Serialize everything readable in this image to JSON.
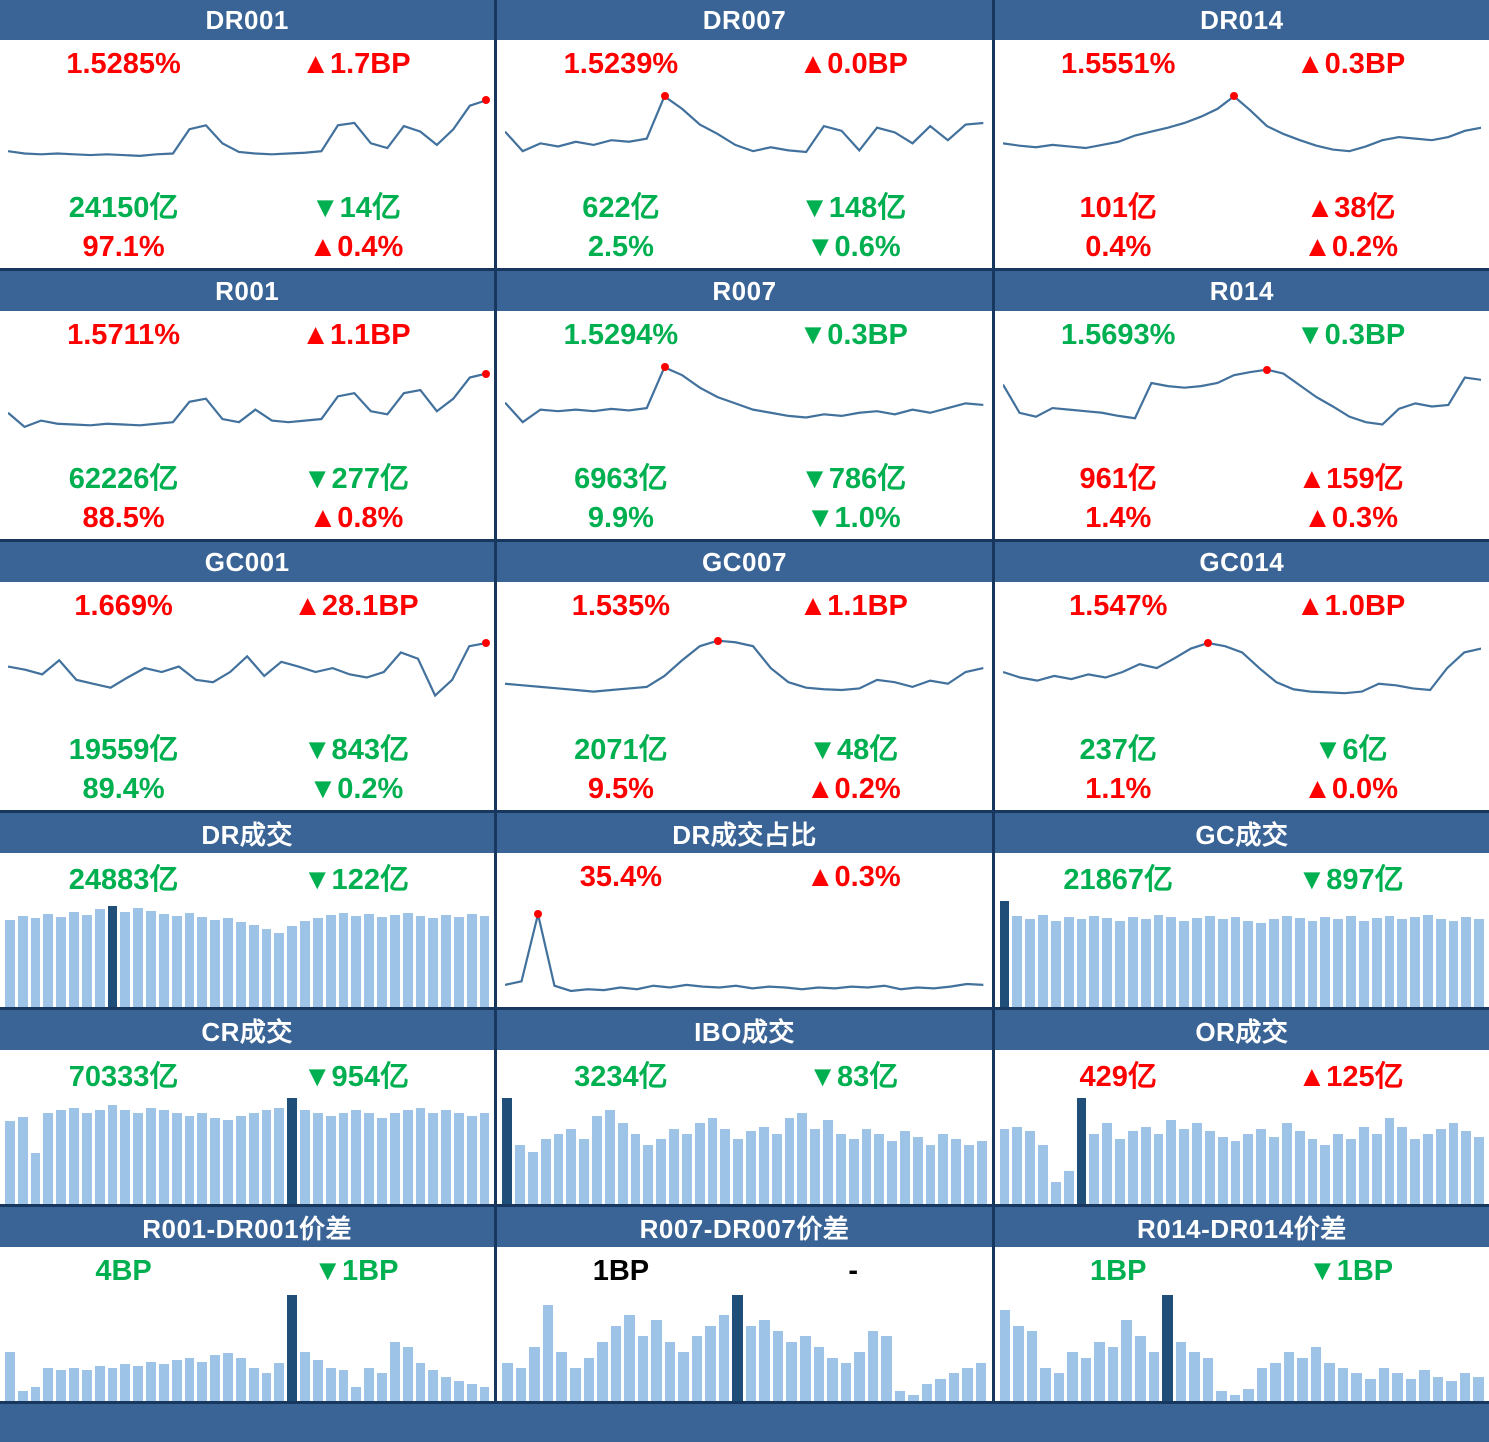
{
  "colors": {
    "up": "#FF0000",
    "down": "#00B050",
    "flat": "#000000",
    "header_bg": "#3A6496",
    "header_text": "#FFFFFF",
    "line": "#41719C",
    "bar_light": "#9DC3E6",
    "bar_dark": "#1F4E79",
    "dot": "#FF0000",
    "border": "#17375E"
  },
  "panels": [
    {
      "id": "dr001",
      "kind": "rate",
      "title": "DR001",
      "rate": {
        "value": "1.5285%",
        "change": "▲1.7BP",
        "dir": "up"
      },
      "volume": {
        "value": "24150亿",
        "change": "▼14亿",
        "dir": "down"
      },
      "share": {
        "value": "97.1%",
        "change": "▲0.4%",
        "dir": "up"
      }
    },
    {
      "id": "dr007",
      "kind": "rate",
      "title": "DR007",
      "rate": {
        "value": "1.5239%",
        "change": "▲0.0BP",
        "dir": "up"
      },
      "volume": {
        "value": "622亿",
        "change": "▼148亿",
        "dir": "down"
      },
      "share": {
        "value": "2.5%",
        "change": "▼0.6%",
        "dir": "down"
      }
    },
    {
      "id": "dr014",
      "kind": "rate",
      "title": "DR014",
      "rate": {
        "value": "1.5551%",
        "change": "▲0.3BP",
        "dir": "up"
      },
      "volume": {
        "value": "101亿",
        "change": "▲38亿",
        "dir": "up"
      },
      "share": {
        "value": "0.4%",
        "change": "▲0.2%",
        "dir": "up"
      }
    },
    {
      "id": "r001",
      "kind": "rate",
      "title": "R001",
      "rate": {
        "value": "1.5711%",
        "change": "▲1.1BP",
        "dir": "up"
      },
      "volume": {
        "value": "62226亿",
        "change": "▼277亿",
        "dir": "down"
      },
      "share": {
        "value": "88.5%",
        "change": "▲0.8%",
        "dir": "up"
      }
    },
    {
      "id": "r007",
      "kind": "rate",
      "title": "R007",
      "rate": {
        "value": "1.5294%",
        "change": "▼0.3BP",
        "dir": "down"
      },
      "volume": {
        "value": "6963亿",
        "change": "▼786亿",
        "dir": "down"
      },
      "share": {
        "value": "9.9%",
        "change": "▼1.0%",
        "dir": "down"
      }
    },
    {
      "id": "r014",
      "kind": "rate",
      "title": "R014",
      "rate": {
        "value": "1.5693%",
        "change": "▼0.3BP",
        "dir": "down"
      },
      "volume": {
        "value": "961亿",
        "change": "▲159亿",
        "dir": "up"
      },
      "share": {
        "value": "1.4%",
        "change": "▲0.3%",
        "dir": "up"
      }
    },
    {
      "id": "gc001",
      "kind": "rate",
      "title": "GC001",
      "rate": {
        "value": "1.669%",
        "change": "▲28.1BP",
        "dir": "up"
      },
      "volume": {
        "value": "19559亿",
        "change": "▼843亿",
        "dir": "down"
      },
      "share": {
        "value": "89.4%",
        "change": "▼0.2%",
        "dir": "down"
      }
    },
    {
      "id": "gc007",
      "kind": "rate",
      "title": "GC007",
      "rate": {
        "value": "1.535%",
        "change": "▲1.1BP",
        "dir": "up"
      },
      "volume": {
        "value": "2071亿",
        "change": "▼48亿",
        "dir": "down"
      },
      "share": {
        "value": "9.5%",
        "change": "▲0.2%",
        "dir": "up"
      }
    },
    {
      "id": "gc014",
      "kind": "rate",
      "title": "GC014",
      "rate": {
        "value": "1.547%",
        "change": "▲1.0BP",
        "dir": "up"
      },
      "volume": {
        "value": "237亿",
        "change": "▼6亿",
        "dir": "down"
      },
      "share": {
        "value": "1.1%",
        "change": "▲0.0%",
        "dir": "up"
      }
    },
    {
      "id": "dr-turnover",
      "kind": "summary",
      "title": "DR成交",
      "stat": {
        "value": "24883亿",
        "change": "▼122亿",
        "dir": "down"
      }
    },
    {
      "id": "dr-share",
      "kind": "summary",
      "title": "DR成交占比",
      "stat": {
        "value": "35.4%",
        "change": "▲0.3%",
        "dir": "up"
      }
    },
    {
      "id": "gc-turnover",
      "kind": "summary",
      "title": "GC成交",
      "stat": {
        "value": "21867亿",
        "change": "▼897亿",
        "dir": "down"
      }
    },
    {
      "id": "cr-turnover",
      "kind": "summary",
      "title": "CR成交",
      "stat": {
        "value": "70333亿",
        "change": "▼954亿",
        "dir": "down"
      }
    },
    {
      "id": "ibo-turnover",
      "kind": "summary",
      "title": "IBO成交",
      "stat": {
        "value": "3234亿",
        "change": "▼83亿",
        "dir": "down"
      }
    },
    {
      "id": "or-turnover",
      "kind": "summary",
      "title": "OR成交",
      "stat": {
        "value": "429亿",
        "change": "▲125亿",
        "dir": "up"
      }
    },
    {
      "id": "spread-r001",
      "kind": "summary",
      "title": "R001-DR001价差",
      "stat": {
        "value": "4BP",
        "change": "▼1BP",
        "dir": "down"
      }
    },
    {
      "id": "spread-r007",
      "kind": "summary",
      "title": "R007-DR007价差",
      "stat": {
        "value": "1BP",
        "change": "-",
        "dir": "flat"
      }
    },
    {
      "id": "spread-r014",
      "kind": "summary",
      "title": "R014-DR014价差",
      "stat": {
        "value": "1BP",
        "change": "▼1BP",
        "dir": "down"
      }
    }
  ],
  "chart_data": [
    {
      "panel": "DR001",
      "type": "line",
      "ylim": [
        0,
        1
      ],
      "note": "normalized sparkline, no axis labels shown",
      "values": [
        0.3,
        0.27,
        0.26,
        0.27,
        0.26,
        0.25,
        0.26,
        0.25,
        0.24,
        0.26,
        0.27,
        0.58,
        0.63,
        0.4,
        0.29,
        0.27,
        0.26,
        0.27,
        0.28,
        0.3,
        0.63,
        0.66,
        0.4,
        0.34,
        0.62,
        0.55,
        0.38,
        0.58,
        0.88,
        0.95
      ],
      "dot_index": 29
    },
    {
      "panel": "DR007",
      "type": "line",
      "ylim": [
        0,
        1
      ],
      "note": "normalized",
      "values": [
        0.55,
        0.3,
        0.4,
        0.36,
        0.42,
        0.38,
        0.44,
        0.42,
        0.46,
        1.0,
        0.84,
        0.64,
        0.52,
        0.38,
        0.3,
        0.35,
        0.31,
        0.29,
        0.62,
        0.56,
        0.31,
        0.6,
        0.54,
        0.4,
        0.62,
        0.44,
        0.64,
        0.66
      ],
      "dot_index": 9
    },
    {
      "panel": "DR014",
      "type": "line",
      "ylim": [
        0,
        1
      ],
      "note": "normalized",
      "values": [
        0.4,
        0.37,
        0.35,
        0.38,
        0.36,
        0.34,
        0.38,
        0.42,
        0.5,
        0.55,
        0.6,
        0.66,
        0.74,
        0.84,
        1.0,
        0.82,
        0.62,
        0.52,
        0.44,
        0.37,
        0.32,
        0.3,
        0.36,
        0.44,
        0.48,
        0.46,
        0.44,
        0.48,
        0.56,
        0.6
      ],
      "dot_index": 14
    },
    {
      "panel": "R001",
      "type": "line",
      "ylim": [
        0,
        1
      ],
      "note": "normalized",
      "values": [
        0.42,
        0.24,
        0.32,
        0.28,
        0.27,
        0.26,
        0.28,
        0.27,
        0.26,
        0.28,
        0.3,
        0.56,
        0.6,
        0.34,
        0.3,
        0.46,
        0.32,
        0.3,
        0.32,
        0.34,
        0.63,
        0.67,
        0.44,
        0.4,
        0.67,
        0.71,
        0.44,
        0.6,
        0.87,
        0.92
      ],
      "dot_index": 29
    },
    {
      "panel": "R007",
      "type": "line",
      "ylim": [
        0,
        1
      ],
      "note": "normalized",
      "values": [
        0.55,
        0.3,
        0.46,
        0.44,
        0.46,
        0.44,
        0.47,
        0.45,
        0.48,
        1.0,
        0.9,
        0.74,
        0.62,
        0.54,
        0.46,
        0.42,
        0.38,
        0.36,
        0.4,
        0.38,
        0.42,
        0.44,
        0.4,
        0.46,
        0.42,
        0.48,
        0.54,
        0.52
      ],
      "dot_index": 9
    },
    {
      "panel": "R014",
      "type": "line",
      "ylim": [
        0,
        1
      ],
      "note": "normalized",
      "values": [
        0.78,
        0.42,
        0.37,
        0.48,
        0.46,
        0.44,
        0.42,
        0.38,
        0.35,
        0.8,
        0.76,
        0.74,
        0.76,
        0.8,
        0.9,
        0.94,
        0.97,
        0.92,
        0.77,
        0.62,
        0.5,
        0.37,
        0.3,
        0.27,
        0.47,
        0.54,
        0.5,
        0.52,
        0.87,
        0.84
      ],
      "dot_index": 16
    },
    {
      "panel": "GC001",
      "type": "line",
      "ylim": [
        0,
        1
      ],
      "note": "normalized",
      "values": [
        0.64,
        0.6,
        0.54,
        0.72,
        0.47,
        0.42,
        0.37,
        0.5,
        0.62,
        0.57,
        0.64,
        0.47,
        0.44,
        0.57,
        0.77,
        0.52,
        0.7,
        0.64,
        0.57,
        0.62,
        0.54,
        0.5,
        0.57,
        0.82,
        0.74,
        0.27,
        0.47,
        0.9,
        0.94
      ],
      "dot_index": 28
    },
    {
      "panel": "GC007",
      "type": "line",
      "ylim": [
        0,
        1
      ],
      "note": "normalized",
      "values": [
        0.42,
        0.4,
        0.38,
        0.36,
        0.34,
        0.32,
        0.34,
        0.36,
        0.38,
        0.52,
        0.72,
        0.9,
        0.97,
        0.95,
        0.9,
        0.62,
        0.44,
        0.37,
        0.35,
        0.34,
        0.36,
        0.47,
        0.44,
        0.38,
        0.46,
        0.42,
        0.57,
        0.62
      ],
      "dot_index": 12
    },
    {
      "panel": "GC014",
      "type": "line",
      "ylim": [
        0,
        1
      ],
      "note": "normalized",
      "values": [
        0.57,
        0.5,
        0.46,
        0.52,
        0.48,
        0.54,
        0.5,
        0.57,
        0.67,
        0.62,
        0.74,
        0.87,
        0.94,
        0.9,
        0.82,
        0.62,
        0.44,
        0.35,
        0.32,
        0.31,
        0.3,
        0.32,
        0.42,
        0.4,
        0.36,
        0.34,
        0.62,
        0.82,
        0.87
      ],
      "dot_index": 12
    },
    {
      "panel": "DR成交",
      "type": "bar",
      "ylim": [
        0,
        1
      ],
      "note": "normalized daily volume bars, highlighted bar is darker",
      "values": [
        0.82,
        0.86,
        0.84,
        0.88,
        0.85,
        0.9,
        0.87,
        0.92,
        0.95,
        0.9,
        0.93,
        0.91,
        0.88,
        0.86,
        0.89,
        0.85,
        0.82,
        0.84,
        0.8,
        0.77,
        0.74,
        0.7,
        0.76,
        0.81,
        0.84,
        0.87,
        0.89,
        0.86,
        0.88,
        0.85,
        0.87,
        0.89,
        0.86,
        0.84,
        0.87,
        0.85,
        0.88,
        0.86
      ],
      "highlight_index": 8
    },
    {
      "panel": "DR成交占比",
      "type": "line",
      "ylim": [
        0,
        1
      ],
      "note": "normalized",
      "values": [
        0.14,
        0.18,
        0.95,
        0.13,
        0.07,
        0.09,
        0.08,
        0.11,
        0.09,
        0.13,
        0.11,
        0.14,
        0.12,
        0.11,
        0.13,
        0.1,
        0.12,
        0.11,
        0.09,
        0.11,
        0.1,
        0.12,
        0.11,
        0.13,
        0.09,
        0.11,
        0.1,
        0.12,
        0.15,
        0.14
      ],
      "dot_index": 2
    },
    {
      "panel": "GC成交",
      "type": "bar",
      "ylim": [
        0,
        1
      ],
      "note": "normalized",
      "values": [
        1.0,
        0.86,
        0.83,
        0.87,
        0.81,
        0.85,
        0.83,
        0.86,
        0.84,
        0.81,
        0.85,
        0.83,
        0.87,
        0.85,
        0.81,
        0.84,
        0.86,
        0.83,
        0.85,
        0.81,
        0.79,
        0.83,
        0.86,
        0.84,
        0.81,
        0.85,
        0.83,
        0.86,
        0.81,
        0.84,
        0.86,
        0.83,
        0.85,
        0.87,
        0.83,
        0.81,
        0.85,
        0.83
      ],
      "highlight_index": 0
    },
    {
      "panel": "CR成交",
      "type": "bar",
      "ylim": [
        0,
        1
      ],
      "note": "normalized",
      "values": [
        0.78,
        0.82,
        0.48,
        0.86,
        0.89,
        0.91,
        0.86,
        0.89,
        0.93,
        0.89,
        0.86,
        0.91,
        0.89,
        0.86,
        0.83,
        0.86,
        0.81,
        0.79,
        0.83,
        0.86,
        0.89,
        0.91,
        1.0,
        0.89,
        0.86,
        0.83,
        0.86,
        0.89,
        0.86,
        0.81,
        0.86,
        0.89,
        0.91,
        0.86,
        0.89,
        0.86,
        0.83,
        0.86
      ],
      "highlight_index": 22
    },
    {
      "panel": "IBO成交",
      "type": "bar",
      "ylim": [
        0,
        1
      ],
      "note": "normalized",
      "values": [
        1.0,
        0.56,
        0.49,
        0.61,
        0.66,
        0.71,
        0.61,
        0.83,
        0.89,
        0.76,
        0.66,
        0.56,
        0.61,
        0.71,
        0.66,
        0.76,
        0.81,
        0.71,
        0.61,
        0.69,
        0.73,
        0.66,
        0.81,
        0.86,
        0.71,
        0.79,
        0.66,
        0.61,
        0.71,
        0.66,
        0.59,
        0.69,
        0.63,
        0.56,
        0.66,
        0.61,
        0.56,
        0.59
      ],
      "highlight_index": 0
    },
    {
      "panel": "OR成交",
      "type": "bar",
      "ylim": [
        0,
        1
      ],
      "note": "normalized",
      "values": [
        0.71,
        0.73,
        0.69,
        0.56,
        0.21,
        0.31,
        1.0,
        0.66,
        0.76,
        0.61,
        0.69,
        0.73,
        0.66,
        0.79,
        0.71,
        0.76,
        0.69,
        0.63,
        0.59,
        0.66,
        0.71,
        0.63,
        0.76,
        0.69,
        0.61,
        0.56,
        0.66,
        0.61,
        0.73,
        0.66,
        0.81,
        0.73,
        0.61,
        0.66,
        0.71,
        0.76,
        0.69,
        0.63
      ],
      "highlight_index": 6
    },
    {
      "panel": "R001-DR001价差",
      "type": "bar",
      "ylim": [
        0,
        1
      ],
      "note": "normalized",
      "values": [
        0.46,
        0.09,
        0.13,
        0.31,
        0.29,
        0.31,
        0.29,
        0.33,
        0.31,
        0.35,
        0.33,
        0.37,
        0.35,
        0.39,
        0.41,
        0.37,
        0.43,
        0.45,
        0.41,
        0.31,
        0.26,
        0.36,
        1.0,
        0.46,
        0.39,
        0.31,
        0.29,
        0.13,
        0.31,
        0.26,
        0.56,
        0.51,
        0.36,
        0.29,
        0.23,
        0.19,
        0.16,
        0.13
      ],
      "highlight_index": 22
    },
    {
      "panel": "R007-DR007价差",
      "type": "bar",
      "ylim": [
        0,
        1
      ],
      "note": "normalized",
      "values": [
        0.36,
        0.31,
        0.51,
        0.91,
        0.46,
        0.31,
        0.41,
        0.56,
        0.71,
        0.81,
        0.61,
        0.76,
        0.56,
        0.46,
        0.61,
        0.71,
        0.81,
        1.0,
        0.71,
        0.76,
        0.66,
        0.56,
        0.61,
        0.51,
        0.41,
        0.36,
        0.46,
        0.66,
        0.61,
        0.09,
        0.06,
        0.16,
        0.21,
        0.26,
        0.31,
        0.36
      ],
      "highlight_index": 17
    },
    {
      "panel": "R014-DR014价差",
      "type": "bar",
      "ylim": [
        0,
        1
      ],
      "note": "normalized",
      "values": [
        0.86,
        0.71,
        0.66,
        0.31,
        0.26,
        0.46,
        0.41,
        0.56,
        0.51,
        0.76,
        0.61,
        0.46,
        1.0,
        0.56,
        0.46,
        0.41,
        0.09,
        0.06,
        0.11,
        0.31,
        0.36,
        0.46,
        0.41,
        0.51,
        0.36,
        0.31,
        0.26,
        0.21,
        0.31,
        0.26,
        0.21,
        0.29,
        0.23,
        0.19,
        0.26,
        0.23
      ],
      "highlight_index": 12
    }
  ]
}
